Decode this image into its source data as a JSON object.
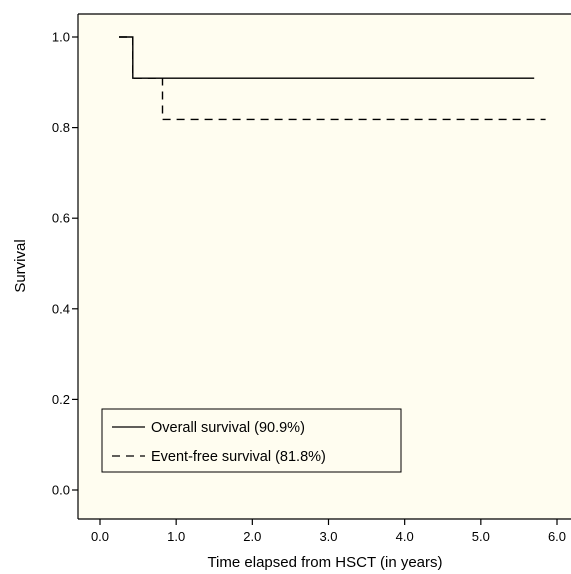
{
  "chart_data": {
    "type": "line",
    "title": "",
    "xlabel": "Time elapsed from HSCT (in years)",
    "ylabel": "Survival",
    "xlim": [
      -0.3,
      6.2
    ],
    "ylim": [
      -0.03,
      1.05
    ],
    "x_ticks": [
      0.0,
      1.0,
      2.0,
      3.0,
      4.0,
      5.0,
      6.0
    ],
    "x_tick_labels": [
      "0.0",
      "1.0",
      "2.0",
      "3.0",
      "4.0",
      "5.0",
      "6.0"
    ],
    "y_ticks": [
      0.0,
      0.2,
      0.4,
      0.6,
      0.8,
      1.0
    ],
    "y_tick_labels": [
      "0.0",
      "0.2",
      "0.4",
      "0.6",
      "0.8",
      "1.0"
    ],
    "legend_position": "bottom-left",
    "plot_background": "#fffdf0",
    "series": [
      {
        "name": "Overall survival (90.9%)",
        "style": "solid",
        "color": "#000000",
        "x": [
          0.25,
          0.43,
          0.43,
          5.7
        ],
        "y": [
          1.0,
          1.0,
          0.909,
          0.909
        ]
      },
      {
        "name": "Event-free survival (81.8%)",
        "style": "dashed",
        "color": "#000000",
        "x": [
          0.25,
          0.43,
          0.43,
          0.82,
          0.82,
          5.85
        ],
        "y": [
          1.0,
          1.0,
          0.909,
          0.909,
          0.818,
          0.818
        ]
      }
    ]
  }
}
